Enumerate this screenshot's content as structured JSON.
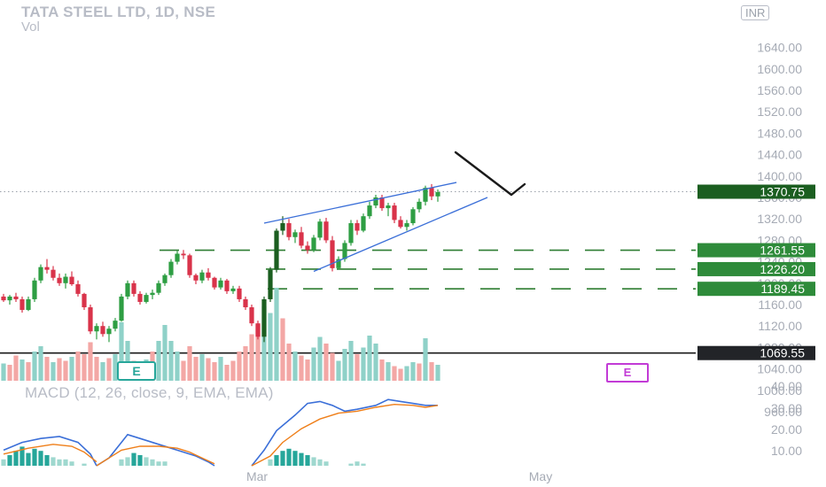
{
  "header": {
    "title": "TATA STEEL LTD, 1D, NSE",
    "volume_label": "Vol",
    "currency": "INR",
    "macd_label": "MACD (12, 26, close, 9, EMA, EMA)"
  },
  "markers": {
    "earnings_left": "E",
    "earnings_right": "E"
  },
  "colors": {
    "up": "#26a69a",
    "down": "#ef5350",
    "dark_up": "#1b5e20",
    "line": "#3b6fd8",
    "signal": "#ef7f1a",
    "level_green": "#2e7d32"
  },
  "chart_data": {
    "type": "candlestick",
    "title": "TATA STEEL LTD, 1D, NSE",
    "price_axis": {
      "ticks": [
        "1640.00",
        "1600.00",
        "1560.00",
        "1520.00",
        "1480.00",
        "1440.00",
        "1400.00",
        "1360.00",
        "1320.00",
        "1280.00",
        "1240.00",
        "1200.00",
        "1160.00",
        "1120.00",
        "1080.00",
        "1040.00",
        "1000.00",
        "960.00"
      ],
      "ylim": [
        950,
        1645
      ]
    },
    "time_axis": {
      "labels": [
        "Mar",
        "May"
      ]
    },
    "macd_axis": {
      "ticks": [
        "40.00",
        "30.00",
        "20.00",
        "10.00"
      ]
    },
    "current_price": "1370.75",
    "levels": [
      {
        "value": 1261.55,
        "label": "1261.55"
      },
      {
        "value": 1226.2,
        "label": "1226.20"
      },
      {
        "value": 1189.45,
        "label": "1189.45"
      }
    ],
    "support": {
      "value": 1069.55,
      "label": "1069.55"
    },
    "candles": [
      [
        1175,
        1180,
        1165,
        1168
      ],
      [
        1168,
        1178,
        1160,
        1175
      ],
      [
        1175,
        1182,
        1165,
        1170
      ],
      [
        1170,
        1175,
        1145,
        1150
      ],
      [
        1150,
        1175,
        1148,
        1170
      ],
      [
        1170,
        1210,
        1165,
        1205
      ],
      [
        1205,
        1235,
        1200,
        1230
      ],
      [
        1230,
        1245,
        1218,
        1225
      ],
      [
        1225,
        1232,
        1205,
        1210
      ],
      [
        1210,
        1218,
        1195,
        1200
      ],
      [
        1200,
        1218,
        1190,
        1212
      ],
      [
        1212,
        1222,
        1195,
        1198
      ],
      [
        1198,
        1205,
        1175,
        1180
      ],
      [
        1180,
        1182,
        1150,
        1155
      ],
      [
        1155,
        1160,
        1105,
        1110
      ],
      [
        1110,
        1125,
        1095,
        1120
      ],
      [
        1120,
        1128,
        1100,
        1105
      ],
      [
        1105,
        1120,
        1090,
        1115
      ],
      [
        1115,
        1135,
        1110,
        1130
      ],
      [
        1130,
        1180,
        1128,
        1175
      ],
      [
        1175,
        1205,
        1170,
        1200
      ],
      [
        1200,
        1205,
        1175,
        1180
      ],
      [
        1180,
        1185,
        1160,
        1165
      ],
      [
        1165,
        1182,
        1162,
        1178
      ],
      [
        1178,
        1188,
        1170,
        1182
      ],
      [
        1182,
        1205,
        1178,
        1200
      ],
      [
        1200,
        1218,
        1195,
        1215
      ],
      [
        1215,
        1245,
        1210,
        1240
      ],
      [
        1240,
        1260,
        1235,
        1255
      ],
      [
        1255,
        1262,
        1245,
        1252
      ],
      [
        1252,
        1255,
        1210,
        1215
      ],
      [
        1215,
        1218,
        1198,
        1205
      ],
      [
        1205,
        1225,
        1200,
        1220
      ],
      [
        1220,
        1228,
        1205,
        1210
      ],
      [
        1210,
        1212,
        1188,
        1192
      ],
      [
        1192,
        1210,
        1188,
        1205
      ],
      [
        1205,
        1208,
        1180,
        1185
      ],
      [
        1185,
        1195,
        1180,
        1190
      ],
      [
        1190,
        1195,
        1165,
        1170
      ],
      [
        1170,
        1175,
        1150,
        1155
      ],
      [
        1155,
        1160,
        1120,
        1125
      ],
      [
        1125,
        1130,
        1095,
        1100
      ],
      [
        1100,
        1175,
        1090,
        1170
      ],
      [
        1170,
        1230,
        1165,
        1225
      ],
      [
        1225,
        1302,
        1220,
        1298
      ],
      [
        1298,
        1325,
        1290,
        1312
      ],
      [
        1312,
        1320,
        1280,
        1286
      ],
      [
        1286,
        1300,
        1275,
        1295
      ],
      [
        1295,
        1305,
        1265,
        1270
      ],
      [
        1270,
        1278,
        1255,
        1262
      ],
      [
        1262,
        1290,
        1258,
        1285
      ],
      [
        1285,
        1320,
        1280,
        1315
      ],
      [
        1315,
        1322,
        1275,
        1280
      ],
      [
        1280,
        1288,
        1222,
        1228
      ],
      [
        1228,
        1250,
        1225,
        1245
      ],
      [
        1245,
        1280,
        1240,
        1275
      ],
      [
        1275,
        1318,
        1270,
        1312
      ],
      [
        1312,
        1318,
        1290,
        1298
      ],
      [
        1298,
        1330,
        1295,
        1325
      ],
      [
        1325,
        1352,
        1320,
        1345
      ],
      [
        1345,
        1365,
        1340,
        1360
      ],
      [
        1360,
        1365,
        1335,
        1340
      ],
      [
        1340,
        1350,
        1325,
        1345
      ],
      [
        1345,
        1350,
        1312,
        1318
      ],
      [
        1318,
        1325,
        1302,
        1305
      ],
      [
        1305,
        1318,
        1298,
        1312
      ],
      [
        1312,
        1342,
        1308,
        1338
      ],
      [
        1338,
        1358,
        1332,
        1352
      ],
      [
        1352,
        1382,
        1345,
        1378
      ],
      [
        1378,
        1385,
        1355,
        1362
      ],
      [
        1362,
        1375,
        1352,
        1370
      ]
    ],
    "volumes": [
      [
        0.65,
        "u"
      ],
      [
        0.6,
        "d"
      ],
      [
        0.95,
        "d"
      ],
      [
        0.8,
        "u"
      ],
      [
        0.7,
        "d"
      ],
      [
        1.1,
        "u"
      ],
      [
        1.3,
        "u"
      ],
      [
        0.9,
        "d"
      ],
      [
        0.7,
        "u"
      ],
      [
        0.85,
        "d"
      ],
      [
        0.75,
        "d"
      ],
      [
        0.9,
        "u"
      ],
      [
        1.1,
        "d"
      ],
      [
        1.0,
        "d"
      ],
      [
        1.45,
        "d"
      ],
      [
        0.9,
        "d"
      ],
      [
        0.7,
        "u"
      ],
      [
        0.85,
        "d"
      ],
      [
        1.0,
        "u"
      ],
      [
        2.2,
        "u"
      ],
      [
        1.5,
        "u"
      ],
      [
        0.75,
        "d"
      ],
      [
        0.6,
        "d"
      ],
      [
        0.8,
        "u"
      ],
      [
        1.1,
        "d"
      ],
      [
        1.5,
        "u"
      ],
      [
        2.1,
        "u"
      ],
      [
        1.5,
        "u"
      ],
      [
        1.1,
        "u"
      ],
      [
        0.75,
        "d"
      ],
      [
        1.3,
        "d"
      ],
      [
        0.9,
        "d"
      ],
      [
        1.0,
        "u"
      ],
      [
        0.85,
        "d"
      ],
      [
        0.7,
        "d"
      ],
      [
        0.9,
        "u"
      ],
      [
        0.6,
        "d"
      ],
      [
        0.75,
        "d"
      ],
      [
        1.1,
        "d"
      ],
      [
        1.3,
        "d"
      ],
      [
        1.75,
        "d"
      ],
      [
        2.1,
        "d"
      ],
      [
        2.8,
        "u"
      ],
      [
        2.55,
        "u"
      ],
      [
        3.5,
        "u"
      ],
      [
        2.35,
        "d"
      ],
      [
        1.4,
        "d"
      ],
      [
        1.1,
        "u"
      ],
      [
        0.95,
        "d"
      ],
      [
        0.8,
        "d"
      ],
      [
        1.25,
        "u"
      ],
      [
        1.65,
        "u"
      ],
      [
        1.4,
        "d"
      ],
      [
        1.05,
        "d"
      ],
      [
        0.75,
        "u"
      ],
      [
        1.2,
        "u"
      ],
      [
        1.5,
        "u"
      ],
      [
        1.0,
        "d"
      ],
      [
        1.25,
        "u"
      ],
      [
        1.7,
        "u"
      ],
      [
        1.4,
        "u"
      ],
      [
        0.8,
        "d"
      ],
      [
        0.7,
        "u"
      ],
      [
        0.55,
        "d"
      ],
      [
        0.45,
        "d"
      ],
      [
        0.55,
        "u"
      ],
      [
        0.7,
        "u"
      ],
      [
        0.65,
        "d"
      ],
      [
        1.6,
        "u"
      ],
      [
        0.7,
        "d"
      ],
      [
        0.6,
        "u"
      ]
    ],
    "macd": {
      "segments": [
        {
          "macd": [
            [
              0,
              8
            ],
            [
              3,
              12
            ],
            [
              6,
              14
            ],
            [
              9,
              15
            ],
            [
              12,
              12
            ],
            [
              14,
              6
            ],
            [
              15,
              0
            ]
          ],
          "signal": [
            [
              0,
              6
            ],
            [
              4,
              9
            ],
            [
              8,
              11
            ],
            [
              11,
              10
            ],
            [
              13,
              7
            ],
            [
              15,
              2
            ]
          ]
        },
        {
          "macd": [
            [
              15,
              0
            ],
            [
              17,
              4
            ],
            [
              19,
              12
            ],
            [
              20,
              16
            ],
            [
              22,
              14
            ],
            [
              25,
              11
            ],
            [
              28,
              8
            ],
            [
              31,
              5
            ],
            [
              33,
              2
            ],
            [
              34,
              0
            ]
          ],
          "signal": [
            [
              15,
              0
            ],
            [
              19,
              8
            ],
            [
              22,
              10
            ],
            [
              25,
              10
            ],
            [
              28,
              9
            ],
            [
              30,
              7
            ],
            [
              32,
              4
            ],
            [
              34,
              1
            ]
          ]
        },
        {
          "macd": [
            [
              40,
              0
            ],
            [
              42,
              8
            ],
            [
              44,
              18
            ],
            [
              47,
              26
            ],
            [
              49,
              32
            ],
            [
              51,
              33
            ],
            [
              53,
              31
            ],
            [
              55,
              28
            ],
            [
              57,
              29
            ],
            [
              60,
              31
            ],
            [
              62,
              34
            ],
            [
              64,
              33
            ],
            [
              66,
              32
            ],
            [
              68,
              31
            ],
            [
              70,
              31
            ]
          ],
          "signal": [
            [
              40,
              0
            ],
            [
              43,
              5
            ],
            [
              45,
              12
            ],
            [
              48,
              19
            ],
            [
              51,
              24
            ],
            [
              54,
              27
            ],
            [
              57,
              28
            ],
            [
              60,
              30
            ],
            [
              63,
              31.5
            ],
            [
              66,
              31
            ],
            [
              68,
              30
            ],
            [
              70,
              31
            ]
          ]
        }
      ],
      "histogram": [
        [
          0,
          3
        ],
        [
          1,
          5
        ],
        [
          2,
          7
        ],
        [
          3,
          9
        ],
        [
          4,
          6
        ],
        [
          5,
          8
        ],
        [
          6,
          7
        ],
        [
          7,
          5
        ],
        [
          8,
          4
        ],
        [
          9,
          3
        ],
        [
          10,
          3
        ],
        [
          11,
          2
        ],
        [
          13,
          1
        ],
        [
          19,
          3
        ],
        [
          20,
          4
        ],
        [
          21,
          6
        ],
        [
          22,
          5
        ],
        [
          23,
          4
        ],
        [
          24,
          3
        ],
        [
          25,
          2
        ],
        [
          26,
          2
        ],
        [
          43,
          3
        ],
        [
          44,
          5
        ],
        [
          45,
          7
        ],
        [
          46,
          8
        ],
        [
          47,
          7
        ],
        [
          48,
          6
        ],
        [
          49,
          5
        ],
        [
          50,
          4
        ],
        [
          51,
          3
        ],
        [
          52,
          2
        ],
        [
          56,
          1
        ],
        [
          57,
          2
        ],
        [
          58,
          1
        ]
      ]
    }
  }
}
